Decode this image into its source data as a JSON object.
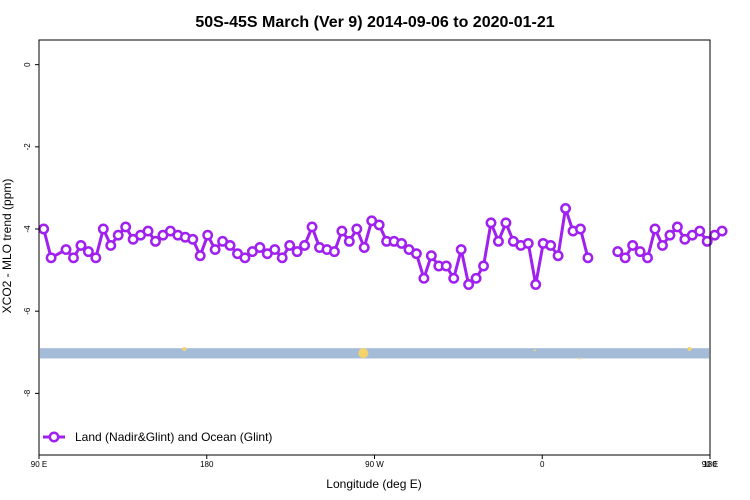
{
  "chart_data": {
    "type": "line",
    "title": "50S-45S March (Ver 9)   2014-09-06 to 2020-01-21",
    "xlabel": "Longitude (deg E)",
    "ylabel": "XCO2 - MLO trend (ppm)",
    "xlim": [
      90,
      450
    ],
    "ylim": [
      -9.5,
      0.6
    ],
    "x_ticks": [
      {
        "value": 90,
        "label": "90 E"
      },
      {
        "value": 180,
        "label": "180"
      },
      {
        "value": 270,
        "label": "90 W"
      },
      {
        "value": 360,
        "label": "0"
      },
      {
        "value": 450,
        "label": "90 E"
      },
      {
        "value": 540,
        "label": "180"
      }
    ],
    "y_ticks": [
      {
        "value": 0,
        "label": "0"
      },
      {
        "value": -2,
        "label": "-2"
      },
      {
        "value": -4,
        "label": "-4"
      },
      {
        "value": -6,
        "label": "-6"
      },
      {
        "value": -8,
        "label": "-8"
      }
    ],
    "series": [
      {
        "name": "Land (Nadir&Glint) and Ocean (Glint)",
        "color": "#a020f0",
        "points": [
          [
            92.5,
            -4.0
          ],
          [
            96.5,
            -4.7
          ],
          [
            104.5,
            -4.5
          ],
          [
            108.5,
            -4.7
          ],
          [
            112.5,
            -4.4
          ],
          [
            116.5,
            -4.55
          ],
          [
            120.5,
            -4.7
          ],
          [
            124.5,
            -4.0
          ],
          [
            128.5,
            -4.4
          ],
          [
            132.5,
            -4.15
          ],
          [
            136.5,
            -3.95
          ],
          [
            140.5,
            -4.25
          ],
          [
            144.5,
            -4.15
          ],
          [
            148.5,
            -4.05
          ],
          [
            152.5,
            -4.3
          ],
          [
            156.5,
            -4.15
          ],
          [
            160.5,
            -4.05
          ],
          [
            164.5,
            -4.15
          ],
          [
            168.5,
            -4.2
          ],
          [
            172.5,
            -4.25
          ],
          [
            176.5,
            -4.65
          ],
          [
            180.5,
            -4.15
          ],
          [
            184.5,
            -4.5
          ],
          [
            188.5,
            -4.3
          ],
          [
            192.5,
            -4.4
          ],
          [
            196.5,
            -4.6
          ],
          [
            200.5,
            -4.7
          ],
          [
            204.5,
            -4.55
          ],
          [
            208.5,
            -4.45
          ],
          [
            212.5,
            -4.6
          ],
          [
            216.5,
            -4.5
          ],
          [
            220.5,
            -4.7
          ],
          [
            224.5,
            -4.4
          ],
          [
            228.5,
            -4.55
          ],
          [
            232.5,
            -4.4
          ],
          [
            236.5,
            -3.95
          ],
          [
            240.5,
            -4.45
          ],
          [
            244.5,
            -4.5
          ],
          [
            248.5,
            -4.55
          ],
          [
            252.5,
            -4.05
          ],
          [
            256.5,
            -4.3
          ],
          [
            260.5,
            -4.0
          ],
          [
            264.5,
            -4.45
          ],
          [
            268.5,
            -3.8
          ],
          [
            272.5,
            -3.9
          ],
          [
            276.5,
            -4.3
          ],
          [
            280.5,
            -4.3
          ],
          [
            284.5,
            -4.35
          ],
          [
            288.5,
            -4.5
          ],
          [
            292.5,
            -4.6
          ],
          [
            296.5,
            -5.2
          ],
          [
            300.5,
            -4.65
          ],
          [
            304.5,
            -4.9
          ],
          [
            308.5,
            -4.9
          ],
          [
            312.5,
            -5.2
          ],
          [
            316.5,
            -4.5
          ],
          [
            320.5,
            -5.35
          ],
          [
            324.5,
            -5.2
          ],
          [
            328.5,
            -4.9
          ],
          [
            332.5,
            -3.85
          ],
          [
            336.5,
            -4.3
          ],
          [
            340.5,
            -3.85
          ],
          [
            344.5,
            -4.3
          ],
          [
            348.5,
            -4.4
          ],
          [
            352.5,
            -4.35
          ],
          [
            356.5,
            -5.35
          ],
          [
            360.5,
            -4.35
          ],
          [
            364.5,
            -4.4
          ],
          [
            368.5,
            -4.65
          ],
          [
            372.5,
            -3.5
          ],
          [
            376.5,
            -4.05
          ],
          [
            380.5,
            -4.0
          ],
          [
            384.5,
            -4.7
          ],
          null,
          [
            400.5,
            -4.55
          ],
          [
            404.5,
            -4.7
          ],
          [
            408.5,
            -4.4
          ],
          [
            412.5,
            -4.55
          ],
          [
            416.5,
            -4.7
          ],
          [
            420.5,
            -4.0
          ],
          [
            424.5,
            -4.4
          ],
          [
            428.5,
            -4.15
          ],
          [
            432.5,
            -3.95
          ],
          [
            436.5,
            -4.25
          ],
          [
            440.5,
            -4.15
          ],
          [
            444.5,
            -4.05
          ],
          [
            448.5,
            -4.3
          ],
          [
            452.5,
            -4.15
          ],
          [
            456.5,
            -4.05
          ]
        ]
      }
    ],
    "background_band": {
      "y_from": -7.15,
      "y_to": -6.9,
      "color": "#a5bcd9"
    },
    "band_markers": [
      {
        "x": 168,
        "y": -6.92,
        "size": 2,
        "color": "#f5d36a"
      },
      {
        "x": 264,
        "y": -7.02,
        "size": 5,
        "color": "#f5d36a"
      },
      {
        "x": 439,
        "y": -6.92,
        "size": 2,
        "color": "#f5d36a"
      },
      {
        "x": 380,
        "y": -7.15,
        "size": 1,
        "color": "#f5d36a"
      },
      {
        "x": 356,
        "y": -6.95,
        "size": 1,
        "color": "#f5d36a"
      }
    ],
    "legend": {
      "position": "bottom-left"
    },
    "grid": false
  }
}
